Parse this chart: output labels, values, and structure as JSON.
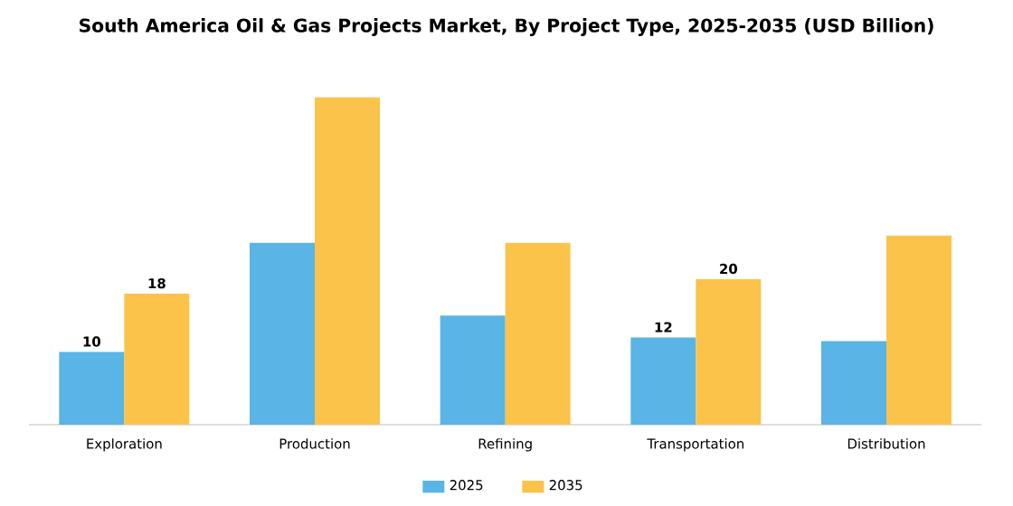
{
  "chart_data": {
    "type": "bar",
    "title": "South America Oil & Gas Projects Market, By Project Type, 2025-2035 (USD Billion)",
    "categories": [
      "Exploration",
      "Production",
      "Refining",
      "Transportation",
      "Distribution"
    ],
    "series": [
      {
        "name": "2025",
        "color": "#5ab4e5",
        "values": [
          10,
          25,
          15,
          12,
          11.5
        ],
        "value_labels": [
          "10",
          null,
          null,
          "12",
          null
        ]
      },
      {
        "name": "2035",
        "color": "#fbc34a",
        "values": [
          18,
          45,
          25,
          20,
          26
        ],
        "value_labels": [
          "18",
          null,
          null,
          "20",
          null
        ]
      }
    ],
    "legend": "bottom"
  }
}
